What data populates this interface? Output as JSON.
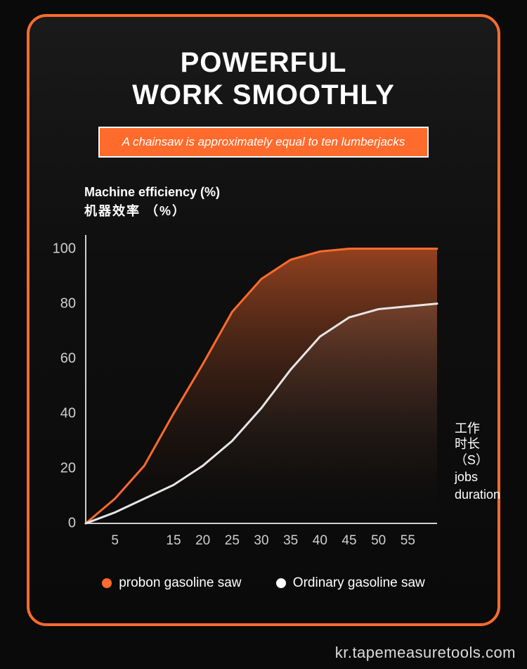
{
  "title": {
    "line1": "POWERFUL",
    "line2": "WORK SMOOTHLY"
  },
  "subtitle": "A chainsaw is approximately equal to ten lumberjacks",
  "y_axis": {
    "label_en": "Machine efficiency (%)",
    "label_zh": "机器效率 （%）"
  },
  "x_axis": {
    "label_zh1": "工作",
    "label_zh2": "时长",
    "label_zh3": "（S）",
    "label_en1": "jobs",
    "label_en2": "duration"
  },
  "chart": {
    "type": "line",
    "xlim": [
      0,
      60
    ],
    "ylim": [
      0,
      105
    ],
    "y_ticks": [
      0,
      20,
      40,
      60,
      80,
      100
    ],
    "x_ticks": [
      5,
      15,
      20,
      25,
      30,
      35,
      40,
      45,
      50,
      55
    ],
    "axis_color": "#cfcfcf",
    "axis_width": 2,
    "background": "transparent",
    "series": [
      {
        "name": "probon gasoline saw",
        "color": "#ff6b2c",
        "fill_top": "rgba(255,107,44,0.55)",
        "fill_bottom": "rgba(20,20,20,0.0)",
        "line_width": 3,
        "points": [
          [
            0,
            0
          ],
          [
            5,
            9
          ],
          [
            10,
            21
          ],
          [
            15,
            40
          ],
          [
            20,
            58
          ],
          [
            25,
            77
          ],
          [
            30,
            89
          ],
          [
            35,
            96
          ],
          [
            40,
            99
          ],
          [
            45,
            100
          ],
          [
            50,
            100
          ],
          [
            55,
            100
          ],
          [
            60,
            100
          ]
        ]
      },
      {
        "name": "Ordinary gasoline saw",
        "color": "#e6e6e6",
        "fill_top": "rgba(120,120,120,0.28)",
        "fill_bottom": "rgba(20,20,20,0.0)",
        "line_width": 3,
        "points": [
          [
            0,
            0
          ],
          [
            5,
            4
          ],
          [
            10,
            9
          ],
          [
            15,
            14
          ],
          [
            20,
            21
          ],
          [
            25,
            30
          ],
          [
            30,
            42
          ],
          [
            35,
            56
          ],
          [
            40,
            68
          ],
          [
            45,
            75
          ],
          [
            50,
            78
          ],
          [
            55,
            79
          ],
          [
            60,
            80
          ]
        ]
      }
    ]
  },
  "legend": {
    "item1": {
      "label": "probon gasoline saw",
      "color": "#ff6b2c"
    },
    "item2": {
      "label": "Ordinary gasoline saw",
      "color": "#ffffff"
    }
  },
  "watermark": "kr.tapemeasuretools.com",
  "colors": {
    "frame_border": "#ff6b2c",
    "banner_bg": "#ff6b2c",
    "text": "#ffffff",
    "tick": "#cfcfcf"
  }
}
